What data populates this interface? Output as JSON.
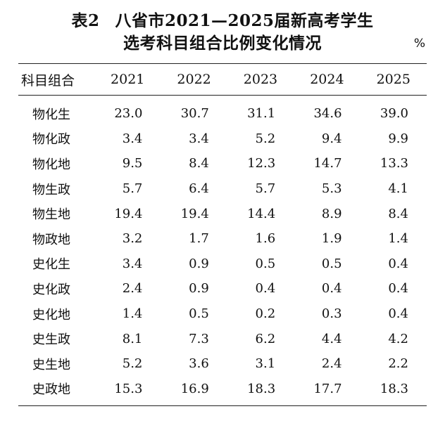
{
  "title": {
    "label": "表2",
    "line1": "八省市2021—2025届新高考学生",
    "line2": "选考科目组合比例变化情况"
  },
  "unit": "%",
  "table": {
    "headers": [
      "科目组合",
      "2021",
      "2022",
      "2023",
      "2024",
      "2025"
    ],
    "rows": [
      [
        "物化生",
        "23.0",
        "30.7",
        "31.1",
        "34.6",
        "39.0"
      ],
      [
        "物化政",
        "3.4",
        "3.4",
        "5.2",
        "9.4",
        "9.9"
      ],
      [
        "物化地",
        "9.5",
        "8.4",
        "12.3",
        "14.7",
        "13.3"
      ],
      [
        "物生政",
        "5.7",
        "6.4",
        "5.7",
        "5.3",
        "4.1"
      ],
      [
        "物生地",
        "19.4",
        "19.4",
        "14.4",
        "8.9",
        "8.4"
      ],
      [
        "物政地",
        "3.2",
        "1.7",
        "1.6",
        "1.9",
        "1.4"
      ],
      [
        "史化生",
        "3.4",
        "0.9",
        "0.5",
        "0.5",
        "0.4"
      ],
      [
        "史化政",
        "2.4",
        "0.9",
        "0.4",
        "0.4",
        "0.4"
      ],
      [
        "史化地",
        "1.4",
        "0.5",
        "0.2",
        "0.3",
        "0.4"
      ],
      [
        "史生政",
        "8.1",
        "7.3",
        "6.2",
        "4.4",
        "4.2"
      ],
      [
        "史生地",
        "5.2",
        "3.6",
        "3.1",
        "2.4",
        "2.2"
      ],
      [
        "史政地",
        "15.3",
        "16.9",
        "18.3",
        "17.7",
        "18.3"
      ]
    ]
  }
}
